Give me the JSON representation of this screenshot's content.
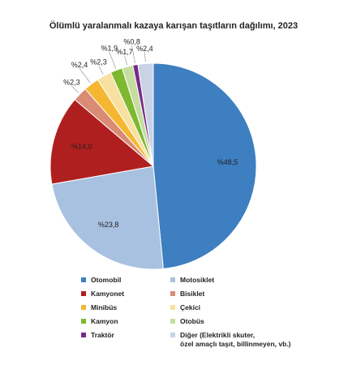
{
  "chart_data": {
    "type": "pie",
    "title": "Ölümlü yaralanmalı kazaya karışan taşıtların dağılımı, 2023",
    "categories": [
      "Otomobil",
      "Motosiklet",
      "Kamyonet",
      "Bisiklet",
      "Minibüs",
      "Çekici",
      "Kamyon",
      "Otobüs",
      "Traktör",
      "Diğer (Elektrikli skuter,\nözel amaçlı taşıt, billinmeyen, vb.)"
    ],
    "values": [
      48.5,
      23.8,
      14.0,
      2.3,
      2.4,
      2.3,
      1.9,
      1.7,
      0.8,
      2.4
    ],
    "value_labels": [
      "%48,5",
      "%23,8",
      "%14,0",
      "%2,3",
      "%2,4",
      "%2,3",
      "%1,9",
      "%1,7",
      "%0,8",
      "%2,4"
    ],
    "colors": [
      "#3d7fc1",
      "#a9c1e0",
      "#b01f1f",
      "#d98b74",
      "#f5b731",
      "#f7e0a0",
      "#7eb82f",
      "#c5dea0",
      "#7b2a8a",
      "#c9d3e6"
    ]
  }
}
